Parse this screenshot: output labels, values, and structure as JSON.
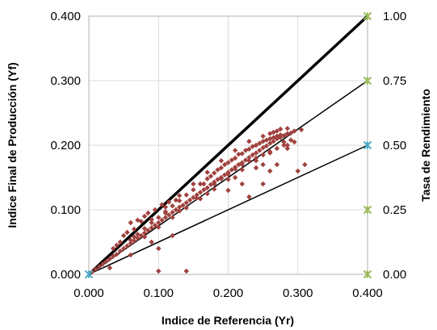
{
  "chart_data": {
    "type": "scatter",
    "title": "",
    "xlabel": "Indice de Referencia (Yr)",
    "ylabel": "Indice Final de Producción (Yf)",
    "y2label": "Tasa de Rendimiento",
    "xlim": [
      0,
      0.4
    ],
    "ylim": [
      0,
      0.4
    ],
    "y2lim": [
      0,
      1
    ],
    "x_ticks": [
      "0.000",
      "0.100",
      "0.200",
      "0.300",
      "0.400"
    ],
    "y_ticks": [
      "0.000",
      "0.100",
      "0.200",
      "0.300",
      "0.400"
    ],
    "y2_ticks": [
      "0.00",
      "0.25",
      "0.50",
      "0.75",
      "1.00"
    ],
    "grid": true,
    "legend": "none",
    "colors": {
      "points": "#a0423f",
      "green_marker": "#9bbb59",
      "blue_marker": "#4bacc6",
      "lines": "#000000",
      "grid": "#d9d9d9"
    },
    "reference_lines": [
      {
        "slope": 1.0,
        "weight": "heavy"
      },
      {
        "slope": 0.75,
        "weight": "thin"
      },
      {
        "slope": 0.5,
        "weight": "thin"
      }
    ],
    "right_markers": [
      {
        "x": 0.4,
        "y2": 1.0,
        "color": "green"
      },
      {
        "x": 0.4,
        "y2": 0.75,
        "color": "green"
      },
      {
        "x": 0.4,
        "y2": 0.5,
        "color": "blue"
      },
      {
        "x": 0.4,
        "y2": 0.25,
        "color": "green"
      },
      {
        "x": 0.4,
        "y2": 0.0,
        "color": "green"
      },
      {
        "x": 0.0,
        "y2": 0.0,
        "color": "blue"
      }
    ],
    "series": [
      {
        "points": [
          [
            0.005,
            0.004
          ],
          [
            0.01,
            0.008
          ],
          [
            0.015,
            0.012
          ],
          [
            0.02,
            0.016
          ],
          [
            0.025,
            0.02
          ],
          [
            0.03,
            0.024
          ],
          [
            0.035,
            0.028
          ],
          [
            0.04,
            0.031
          ],
          [
            0.045,
            0.036
          ],
          [
            0.05,
            0.04
          ],
          [
            0.055,
            0.044
          ],
          [
            0.06,
            0.048
          ],
          [
            0.065,
            0.052
          ],
          [
            0.07,
            0.056
          ],
          [
            0.075,
            0.06
          ],
          [
            0.08,
            0.064
          ],
          [
            0.085,
            0.068
          ],
          [
            0.09,
            0.072
          ],
          [
            0.095,
            0.076
          ],
          [
            0.1,
            0.08
          ],
          [
            0.105,
            0.084
          ],
          [
            0.11,
            0.088
          ],
          [
            0.115,
            0.092
          ],
          [
            0.12,
            0.096
          ],
          [
            0.125,
            0.1
          ],
          [
            0.13,
            0.104
          ],
          [
            0.135,
            0.107
          ],
          [
            0.14,
            0.111
          ],
          [
            0.145,
            0.115
          ],
          [
            0.15,
            0.119
          ],
          [
            0.155,
            0.123
          ],
          [
            0.16,
            0.127
          ],
          [
            0.165,
            0.131
          ],
          [
            0.17,
            0.134
          ],
          [
            0.175,
            0.139
          ],
          [
            0.18,
            0.143
          ],
          [
            0.185,
            0.147
          ],
          [
            0.19,
            0.15
          ],
          [
            0.195,
            0.154
          ],
          [
            0.2,
            0.158
          ],
          [
            0.205,
            0.162
          ],
          [
            0.21,
            0.166
          ],
          [
            0.215,
            0.17
          ],
          [
            0.22,
            0.173
          ],
          [
            0.225,
            0.177
          ],
          [
            0.23,
            0.181
          ],
          [
            0.235,
            0.185
          ],
          [
            0.24,
            0.188
          ],
          [
            0.245,
            0.192
          ],
          [
            0.25,
            0.196
          ],
          [
            0.255,
            0.199
          ],
          [
            0.26,
            0.203
          ],
          [
            0.265,
            0.206
          ],
          [
            0.27,
            0.21
          ],
          [
            0.275,
            0.212
          ],
          [
            0.28,
            0.215
          ],
          [
            0.285,
            0.217
          ],
          [
            0.29,
            0.219
          ],
          [
            0.06,
            0.053
          ],
          [
            0.07,
            0.062
          ],
          [
            0.08,
            0.071
          ],
          [
            0.09,
            0.08
          ],
          [
            0.1,
            0.088
          ],
          [
            0.11,
            0.097
          ],
          [
            0.12,
            0.106
          ],
          [
            0.13,
            0.114
          ],
          [
            0.14,
            0.123
          ],
          [
            0.15,
            0.131
          ],
          [
            0.16,
            0.14
          ],
          [
            0.17,
            0.148
          ],
          [
            0.18,
            0.157
          ],
          [
            0.19,
            0.165
          ],
          [
            0.2,
            0.173
          ],
          [
            0.21,
            0.18
          ],
          [
            0.22,
            0.187
          ],
          [
            0.23,
            0.194
          ],
          [
            0.24,
            0.2
          ],
          [
            0.25,
            0.206
          ],
          [
            0.26,
            0.21
          ],
          [
            0.27,
            0.214
          ],
          [
            0.08,
            0.058
          ],
          [
            0.1,
            0.073
          ],
          [
            0.12,
            0.088
          ],
          [
            0.14,
            0.103
          ],
          [
            0.16,
            0.117
          ],
          [
            0.18,
            0.132
          ],
          [
            0.2,
            0.147
          ],
          [
            0.22,
            0.162
          ],
          [
            0.24,
            0.176
          ],
          [
            0.26,
            0.188
          ],
          [
            0.28,
            0.2
          ],
          [
            0.09,
            0.085
          ],
          [
            0.11,
            0.104
          ],
          [
            0.13,
            0.122
          ],
          [
            0.15,
            0.14
          ],
          [
            0.17,
            0.158
          ],
          [
            0.19,
            0.176
          ],
          [
            0.21,
            0.192
          ],
          [
            0.23,
            0.206
          ],
          [
            0.25,
            0.214
          ],
          [
            0.305,
            0.224
          ],
          [
            0.295,
            0.222
          ],
          [
            0.285,
            0.226
          ],
          [
            0.275,
            0.225
          ],
          [
            0.27,
            0.222
          ],
          [
            0.265,
            0.22
          ],
          [
            0.26,
            0.218
          ],
          [
            0.29,
            0.208
          ],
          [
            0.28,
            0.205
          ],
          [
            0.285,
            0.2
          ],
          [
            0.27,
            0.195
          ],
          [
            0.26,
            0.19
          ],
          [
            0.25,
            0.185
          ],
          [
            0.24,
            0.18
          ],
          [
            0.23,
            0.176
          ],
          [
            0.22,
            0.17
          ],
          [
            0.21,
            0.163
          ],
          [
            0.2,
            0.155
          ],
          [
            0.19,
            0.148
          ],
          [
            0.18,
            0.14
          ],
          [
            0.165,
            0.14
          ],
          [
            0.175,
            0.152
          ],
          [
            0.185,
            0.162
          ],
          [
            0.195,
            0.17
          ],
          [
            0.205,
            0.177
          ],
          [
            0.215,
            0.186
          ],
          [
            0.225,
            0.192
          ],
          [
            0.235,
            0.198
          ],
          [
            0.245,
            0.203
          ],
          [
            0.255,
            0.208
          ],
          [
            0.265,
            0.212
          ],
          [
            0.275,
            0.216
          ],
          [
            0.285,
            0.218
          ],
          [
            0.06,
            0.08
          ],
          [
            0.07,
            0.084
          ],
          [
            0.075,
            0.082
          ],
          [
            0.05,
            0.06
          ],
          [
            0.055,
            0.065
          ],
          [
            0.045,
            0.05
          ],
          [
            0.04,
            0.045
          ],
          [
            0.035,
            0.04
          ],
          [
            0.08,
            0.09
          ],
          [
            0.085,
            0.095
          ],
          [
            0.095,
            0.1
          ],
          [
            0.105,
            0.108
          ],
          [
            0.115,
            0.112
          ],
          [
            0.125,
            0.115
          ],
          [
            0.065,
            0.07
          ],
          [
            0.1,
            0.04
          ],
          [
            0.12,
            0.06
          ],
          [
            0.1,
            0.005
          ],
          [
            0.14,
            0.005
          ],
          [
            0.23,
            0.12
          ],
          [
            0.25,
            0.14
          ],
          [
            0.26,
            0.16
          ],
          [
            0.3,
            0.16
          ],
          [
            0.31,
            0.17
          ],
          [
            0.27,
            0.17
          ],
          [
            0.22,
            0.14
          ],
          [
            0.09,
            0.05
          ],
          [
            0.06,
            0.03
          ],
          [
            0.03,
            0.01
          ],
          [
            0.065,
            0.058
          ],
          [
            0.11,
            0.095
          ],
          [
            0.13,
            0.098
          ],
          [
            0.155,
            0.118
          ],
          [
            0.17,
            0.125
          ],
          [
            0.2,
            0.13
          ],
          [
            0.24,
            0.165
          ],
          [
            0.25,
            0.17
          ],
          [
            0.285,
            0.195
          ],
          [
            0.295,
            0.205
          ],
          [
            0.21,
            0.15
          ]
        ]
      }
    ]
  }
}
